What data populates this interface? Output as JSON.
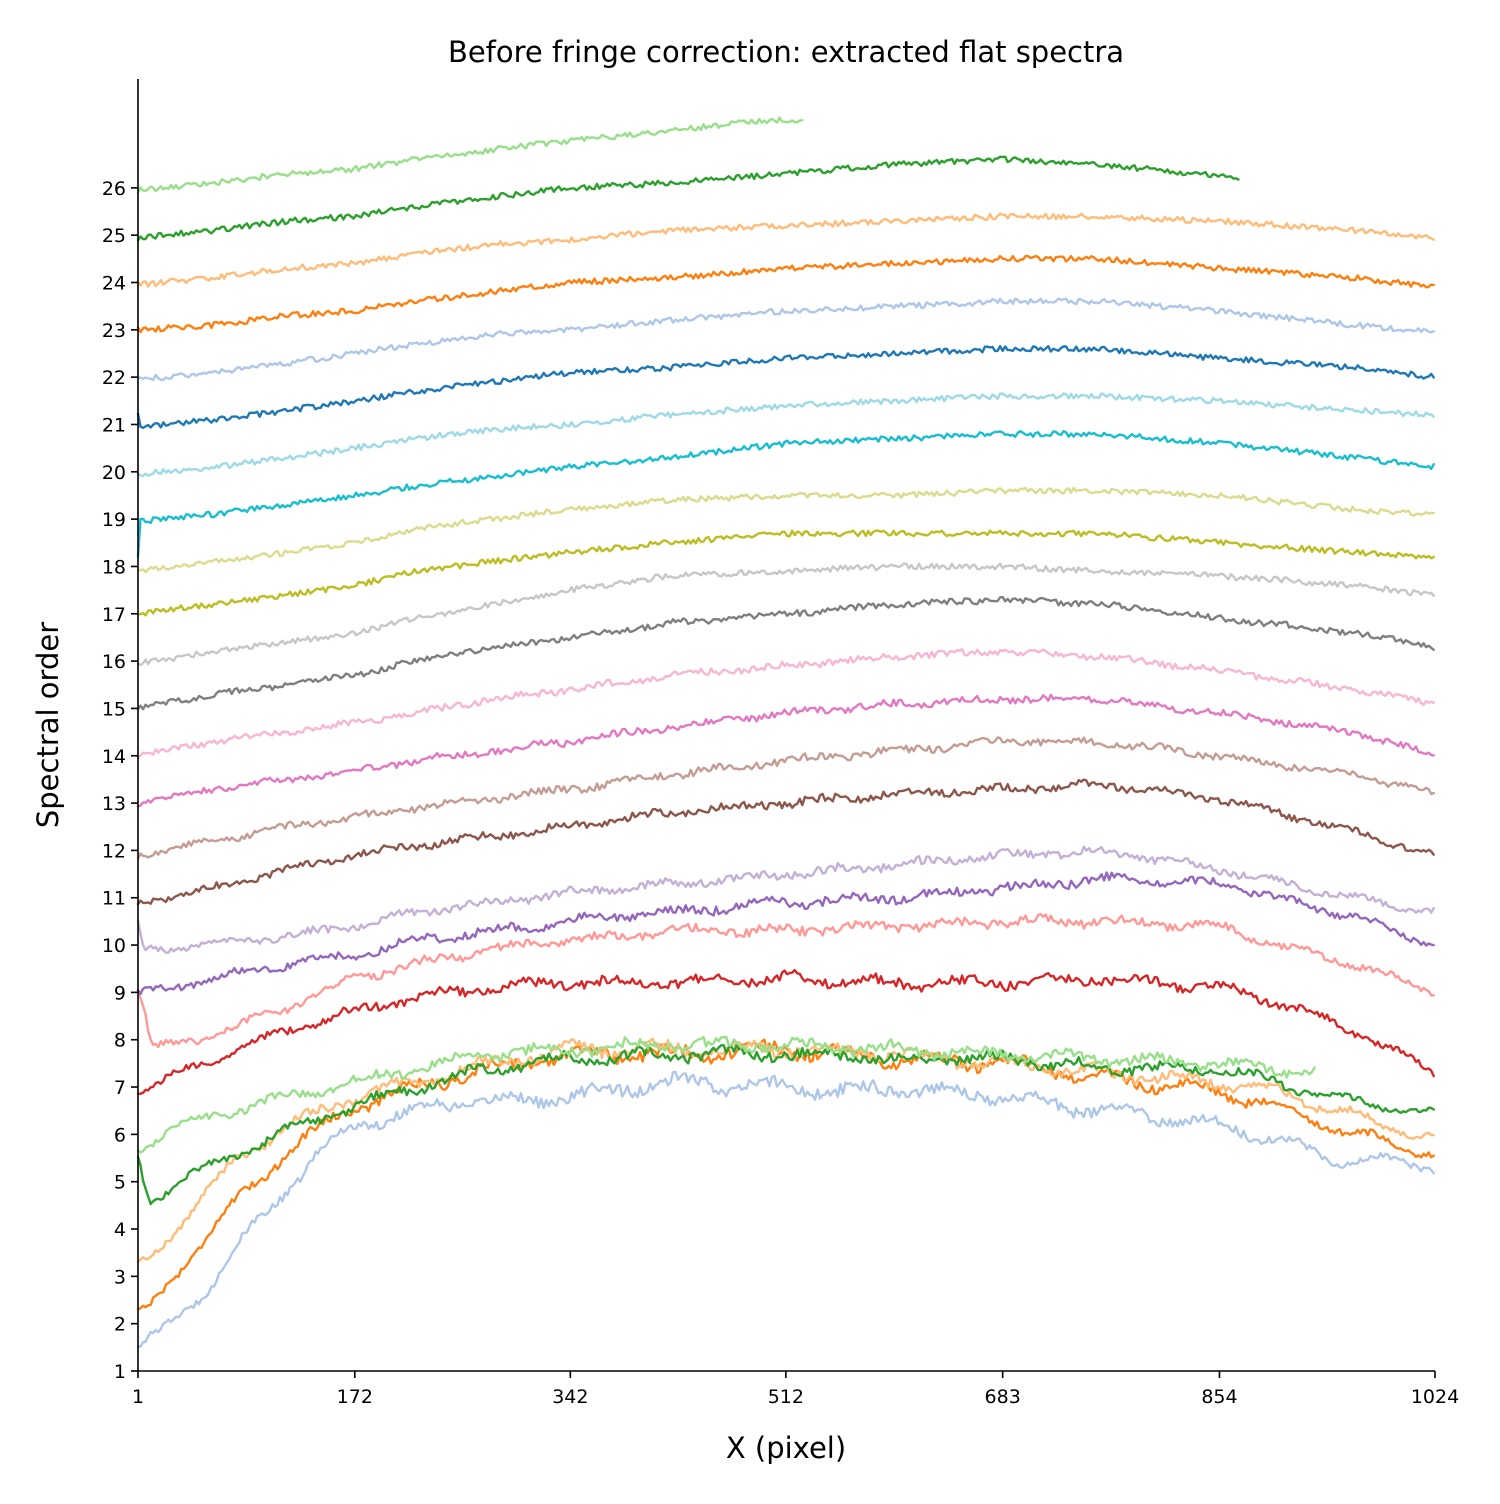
{
  "chart_data": {
    "type": "line",
    "title": "Before fringe correction: extracted flat spectra",
    "xlabel": "X (pixel)",
    "ylabel": "Spectral order",
    "xlim": [
      1,
      1024
    ],
    "ylim": [
      1,
      28.3
    ],
    "x_ticks": [
      1,
      172,
      342,
      512,
      683,
      854,
      1024
    ],
    "y_ticks": [
      1,
      2,
      3,
      4,
      5,
      6,
      7,
      8,
      9,
      10,
      11,
      12,
      13,
      14,
      15,
      16,
      17,
      18,
      19,
      20,
      21,
      22,
      23,
      24,
      25,
      26
    ],
    "grid": false,
    "legend": "none",
    "spines": "left-bottom",
    "series": [
      {
        "color": "#aec7e8",
        "x": [
          1,
          20,
          60,
          100,
          140,
          172,
          220,
          260,
          300,
          342,
          420,
          512,
          560,
          600,
          683,
          760,
          800,
          854,
          900,
          940,
          1024
        ],
        "values": [
          1.5,
          1.8,
          2.9,
          4.3,
          5.5,
          6.2,
          6.5,
          6.7,
          6.7,
          6.8,
          7.1,
          7.0,
          6.9,
          7.0,
          6.8,
          6.5,
          6.4,
          6.2,
          5.9,
          5.5,
          5.35
        ]
      },
      {
        "color": "#ff7f0e",
        "x": [
          1,
          10,
          40,
          80,
          120,
          172,
          220,
          280,
          342,
          420,
          512,
          600,
          683,
          760,
          854,
          900,
          960,
          1024
        ],
        "values": [
          2.2,
          2.3,
          3.4,
          4.6,
          5.7,
          6.6,
          7.0,
          7.4,
          7.7,
          7.7,
          7.8,
          7.6,
          7.5,
          7.2,
          6.9,
          6.6,
          6.0,
          5.6
        ]
      },
      {
        "color": "#ffbb78",
        "x": [
          1,
          10,
          40,
          80,
          120,
          172,
          220,
          280,
          342,
          420,
          512,
          600,
          683,
          760,
          854,
          900,
          960,
          1024
        ],
        "values": [
          3.2,
          3.4,
          4.3,
          5.5,
          6.2,
          6.8,
          7.1,
          7.5,
          7.8,
          7.8,
          7.8,
          7.7,
          7.5,
          7.3,
          7.1,
          6.9,
          6.4,
          5.9
        ]
      },
      {
        "color": "#2ca02c",
        "x": [
          1,
          10,
          40,
          80,
          120,
          172,
          220,
          280,
          342,
          420,
          512,
          600,
          683,
          760,
          854,
          900,
          940,
          1024
        ],
        "values": [
          5.5,
          4.6,
          5.1,
          5.6,
          6.1,
          6.6,
          7.0,
          7.4,
          7.6,
          7.7,
          7.7,
          7.6,
          7.6,
          7.4,
          7.4,
          7.1,
          6.8,
          6.4
        ]
      },
      {
        "color": "#98df8a",
        "x": [
          1,
          20,
          60,
          120,
          172,
          220,
          280,
          342,
          420,
          512,
          600,
          683,
          760,
          854,
          930
        ],
        "values": [
          5.7,
          6.0,
          6.4,
          6.8,
          7.1,
          7.4,
          7.7,
          7.8,
          7.9,
          7.9,
          7.8,
          7.7,
          7.6,
          7.5,
          7.3
        ]
      },
      {
        "color": "#d62728",
        "x": [
          1,
          20,
          60,
          120,
          172,
          220,
          280,
          342,
          420,
          512,
          600,
          683,
          760,
          854,
          900,
          960,
          1024
        ],
        "values": [
          6.9,
          7.1,
          7.6,
          8.2,
          8.6,
          8.9,
          9.1,
          9.2,
          9.2,
          9.3,
          9.2,
          9.2,
          9.3,
          9.1,
          8.8,
          8.2,
          7.3
        ]
      },
      {
        "color": "#ff9896",
        "x": [
          1,
          6,
          12,
          60,
          120,
          172,
          220,
          280,
          342,
          420,
          512,
          600,
          683,
          760,
          854,
          900,
          960,
          1024
        ],
        "values": [
          9.0,
          8.6,
          7.8,
          8.1,
          8.7,
          9.3,
          9.6,
          9.9,
          10.1,
          10.3,
          10.3,
          10.4,
          10.5,
          10.5,
          10.4,
          10.0,
          9.6,
          9.0
        ]
      },
      {
        "color": "#9467bd",
        "x": [
          1,
          60,
          120,
          172,
          220,
          280,
          342,
          420,
          512,
          600,
          683,
          760,
          854,
          960,
          1024
        ],
        "values": [
          8.95,
          9.3,
          9.6,
          9.8,
          10.1,
          10.3,
          10.5,
          10.7,
          10.9,
          11.0,
          11.2,
          11.4,
          11.3,
          10.6,
          10.0
        ]
      },
      {
        "color": "#c5b0d5",
        "x": [
          1,
          6,
          60,
          120,
          172,
          220,
          280,
          342,
          420,
          512,
          600,
          683,
          760,
          854,
          960,
          1024
        ],
        "values": [
          10.4,
          9.9,
          10.0,
          10.2,
          10.4,
          10.7,
          10.9,
          11.1,
          11.3,
          11.5,
          11.7,
          11.9,
          12.0,
          11.6,
          11.0,
          10.7
        ]
      },
      {
        "color": "#8c564b",
        "x": [
          1,
          60,
          120,
          172,
          220,
          280,
          342,
          420,
          512,
          600,
          683,
          760,
          854,
          960,
          1024
        ],
        "values": [
          10.9,
          11.2,
          11.6,
          11.9,
          12.1,
          12.3,
          12.5,
          12.8,
          13.0,
          13.2,
          13.3,
          13.4,
          13.1,
          12.4,
          11.9
        ]
      },
      {
        "color": "#c49c94",
        "x": [
          1,
          60,
          120,
          172,
          220,
          280,
          342,
          420,
          512,
          600,
          683,
          760,
          854,
          960,
          1024
        ],
        "values": [
          11.9,
          12.2,
          12.5,
          12.7,
          12.9,
          13.1,
          13.3,
          13.6,
          13.9,
          14.1,
          14.3,
          14.3,
          14.0,
          13.6,
          13.2
        ]
      },
      {
        "color": "#e377c2",
        "x": [
          1,
          60,
          120,
          172,
          220,
          280,
          342,
          420,
          512,
          600,
          683,
          760,
          854,
          960,
          1024
        ],
        "values": [
          13.0,
          13.3,
          13.5,
          13.7,
          13.9,
          14.1,
          14.3,
          14.6,
          14.9,
          15.1,
          15.2,
          15.2,
          14.9,
          14.5,
          14.0
        ]
      },
      {
        "color": "#f7b6d2",
        "x": [
          1,
          60,
          120,
          172,
          220,
          280,
          342,
          420,
          512,
          600,
          683,
          760,
          854,
          960,
          1024
        ],
        "values": [
          14.0,
          14.3,
          14.5,
          14.7,
          14.9,
          15.2,
          15.4,
          15.7,
          15.9,
          16.1,
          16.2,
          16.1,
          15.8,
          15.4,
          15.1
        ]
      },
      {
        "color": "#7f7f7f",
        "x": [
          1,
          60,
          120,
          172,
          220,
          280,
          342,
          420,
          512,
          600,
          683,
          760,
          854,
          960,
          1024
        ],
        "values": [
          15.0,
          15.3,
          15.5,
          15.7,
          16.0,
          16.3,
          16.5,
          16.8,
          17.0,
          17.2,
          17.3,
          17.2,
          16.9,
          16.6,
          16.3
        ]
      },
      {
        "color": "#c7c7c7",
        "x": [
          1,
          60,
          120,
          172,
          220,
          280,
          342,
          420,
          512,
          600,
          683,
          760,
          854,
          960,
          1024
        ],
        "values": [
          15.95,
          16.2,
          16.4,
          16.6,
          16.9,
          17.2,
          17.5,
          17.8,
          17.9,
          18.0,
          18.0,
          17.9,
          17.8,
          17.6,
          17.4
        ]
      },
      {
        "color": "#bcbd22",
        "x": [
          1,
          60,
          120,
          172,
          220,
          280,
          342,
          420,
          512,
          600,
          683,
          760,
          854,
          960,
          1024
        ],
        "values": [
          17.0,
          17.2,
          17.4,
          17.6,
          17.9,
          18.1,
          18.3,
          18.5,
          18.7,
          18.7,
          18.7,
          18.7,
          18.5,
          18.3,
          18.2
        ]
      },
      {
        "color": "#dbdb8d",
        "x": [
          1,
          60,
          120,
          172,
          220,
          280,
          342,
          420,
          512,
          600,
          683,
          760,
          854,
          960,
          1024
        ],
        "values": [
          17.9,
          18.1,
          18.3,
          18.5,
          18.8,
          19.0,
          19.2,
          19.4,
          19.5,
          19.5,
          19.6,
          19.6,
          19.5,
          19.2,
          19.1
        ]
      },
      {
        "color": "#17becf",
        "x": [
          1,
          3,
          60,
          120,
          172,
          220,
          280,
          342,
          420,
          512,
          600,
          683,
          760,
          854,
          960,
          1024
        ],
        "values": [
          18.2,
          18.95,
          19.1,
          19.3,
          19.5,
          19.7,
          19.9,
          20.1,
          20.3,
          20.6,
          20.7,
          20.8,
          20.8,
          20.6,
          20.3,
          20.1
        ]
      },
      {
        "color": "#9edae5",
        "x": [
          1,
          60,
          120,
          172,
          220,
          280,
          342,
          420,
          512,
          600,
          683,
          760,
          854,
          960,
          1024
        ],
        "values": [
          19.95,
          20.1,
          20.3,
          20.5,
          20.7,
          20.9,
          21.0,
          21.2,
          21.4,
          21.5,
          21.6,
          21.6,
          21.5,
          21.3,
          21.2
        ]
      },
      {
        "color": "#1f77b4",
        "x": [
          1,
          3,
          8,
          60,
          120,
          172,
          220,
          280,
          342,
          420,
          512,
          600,
          683,
          760,
          854,
          960,
          1024
        ],
        "values": [
          21.2,
          20.95,
          20.95,
          21.1,
          21.3,
          21.5,
          21.7,
          21.9,
          22.1,
          22.2,
          22.4,
          22.5,
          22.6,
          22.6,
          22.4,
          22.2,
          22.0
        ]
      },
      {
        "color": "#aec7e8",
        "x": [
          1,
          60,
          120,
          172,
          220,
          280,
          342,
          420,
          512,
          600,
          683,
          760,
          854,
          960,
          1024
        ],
        "values": [
          21.95,
          22.1,
          22.3,
          22.5,
          22.7,
          22.9,
          23.0,
          23.2,
          23.4,
          23.5,
          23.6,
          23.6,
          23.4,
          23.1,
          22.95
        ]
      },
      {
        "color": "#ff7f0e",
        "x": [
          1,
          60,
          120,
          172,
          220,
          280,
          342,
          420,
          512,
          600,
          683,
          760,
          854,
          960,
          1024
        ],
        "values": [
          23.0,
          23.1,
          23.3,
          23.4,
          23.6,
          23.8,
          24.0,
          24.1,
          24.3,
          24.4,
          24.5,
          24.5,
          24.3,
          24.1,
          23.9
        ]
      },
      {
        "color": "#ffbb78",
        "x": [
          1,
          60,
          120,
          172,
          220,
          280,
          342,
          420,
          512,
          600,
          683,
          760,
          854,
          960,
          1024
        ],
        "values": [
          23.95,
          24.1,
          24.3,
          24.4,
          24.6,
          24.8,
          24.9,
          25.1,
          25.2,
          25.3,
          25.4,
          25.4,
          25.3,
          25.1,
          24.95
        ]
      },
      {
        "color": "#2ca02c",
        "x": [
          1,
          60,
          120,
          172,
          220,
          280,
          342,
          420,
          512,
          600,
          683,
          760,
          870
        ],
        "values": [
          24.95,
          25.1,
          25.3,
          25.4,
          25.6,
          25.8,
          26.0,
          26.1,
          26.3,
          26.5,
          26.6,
          26.5,
          26.2
        ]
      },
      {
        "color": "#98df8a",
        "x": [
          1,
          60,
          120,
          172,
          220,
          280,
          342,
          420,
          480,
          525
        ],
        "values": [
          25.95,
          26.1,
          26.3,
          26.4,
          26.6,
          26.8,
          27.0,
          27.2,
          27.4,
          27.45
        ]
      }
    ]
  }
}
